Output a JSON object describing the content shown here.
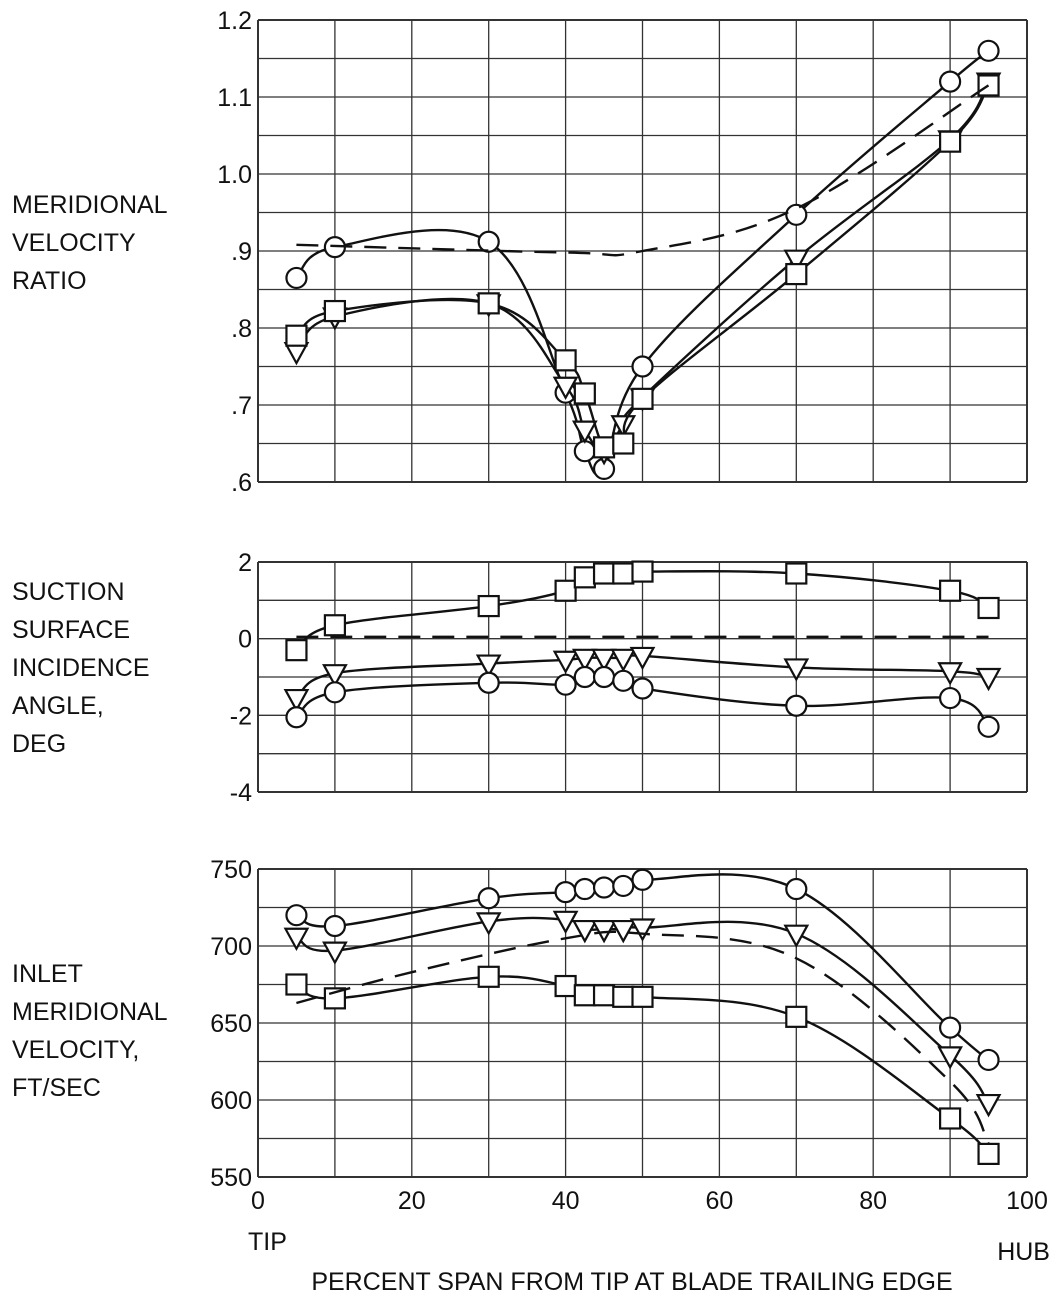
{
  "chart_data": [
    {
      "type": "line",
      "ylabel": [
        "MERIDIONAL",
        "VELOCITY",
        "RATIO"
      ],
      "ylim": [
        0.6,
        1.2
      ],
      "yticks": [
        0.6,
        0.7,
        0.8,
        0.9,
        1.0,
        1.1,
        1.2
      ],
      "ytick_labels": [
        ".6",
        ".7",
        ".8",
        ".9",
        "1.0",
        "1.1",
        "1.2"
      ],
      "xlim": [
        0,
        100
      ],
      "grid": true,
      "series": [
        {
          "marker": "circle",
          "x": [
            5,
            10,
            30,
            40,
            42.5,
            45,
            50,
            70,
            90,
            95
          ],
          "y": [
            0.865,
            0.905,
            0.912,
            0.716,
            0.64,
            0.617,
            0.75,
            0.947,
            1.12,
            1.16
          ]
        },
        {
          "marker": "triangle",
          "x": [
            5,
            10,
            30,
            40,
            42.5,
            45,
            47.5,
            50,
            70,
            90,
            95
          ],
          "y": [
            0.77,
            0.815,
            0.832,
            0.725,
            0.668,
            0.64,
            0.675,
            0.71,
            0.89,
            1.045,
            1.12
          ]
        },
        {
          "marker": "square",
          "x": [
            5,
            10,
            30,
            40,
            42.5,
            45,
            47.5,
            50,
            70,
            90,
            95
          ],
          "y": [
            0.79,
            0.822,
            0.832,
            0.758,
            0.715,
            0.645,
            0.65,
            0.708,
            0.87,
            1.042,
            1.115
          ]
        },
        {
          "dashed": true,
          "x": [
            5,
            40,
            50,
            70,
            95
          ],
          "y": [
            0.908,
            0.898,
            0.9,
            0.955,
            1.115
          ]
        }
      ]
    },
    {
      "type": "line",
      "ylabel": [
        "SUCTION",
        "SURFACE",
        "INCIDENCE",
        "ANGLE,",
        "DEG"
      ],
      "ylim": [
        -4,
        2
      ],
      "yticks": [
        -4,
        -2,
        0,
        2
      ],
      "ytick_labels": [
        "-4",
        "-2",
        "0",
        "2"
      ],
      "xlim": [
        0,
        100
      ],
      "grid": true,
      "series": [
        {
          "marker": "square",
          "x": [
            5,
            10,
            30,
            40,
            42.5,
            45,
            47.5,
            50,
            70,
            90,
            95
          ],
          "y": [
            -0.3,
            0.35,
            0.85,
            1.25,
            1.6,
            1.7,
            1.7,
            1.75,
            1.7,
            1.25,
            0.8
          ]
        },
        {
          "marker": "triangle",
          "x": [
            5,
            10,
            30,
            40,
            42.5,
            45,
            47.5,
            50,
            70,
            90,
            95
          ],
          "y": [
            -1.55,
            -0.9,
            -0.65,
            -0.55,
            -0.5,
            -0.5,
            -0.5,
            -0.45,
            -0.75,
            -0.85,
            -1.0
          ]
        },
        {
          "marker": "circle",
          "x": [
            5,
            10,
            30,
            40,
            42.5,
            45,
            47.5,
            50,
            70,
            90,
            95
          ],
          "y": [
            -2.05,
            -1.4,
            -1.15,
            -1.2,
            -1.0,
            -1.0,
            -1.1,
            -1.3,
            -1.75,
            -1.55,
            -2.3
          ]
        },
        {
          "dashed": true,
          "x": [
            5,
            95
          ],
          "y": [
            0.05,
            0.05
          ]
        }
      ]
    },
    {
      "type": "line",
      "ylabel": [
        "INLET",
        "MERIDIONAL",
        "VELOCITY,",
        "FT/SEC"
      ],
      "ylim": [
        550,
        750
      ],
      "yticks": [
        550,
        600,
        650,
        700,
        750
      ],
      "ytick_labels": [
        "550",
        "600",
        "650",
        "700",
        "750"
      ],
      "xlim": [
        0,
        100
      ],
      "xticks": [
        0,
        20,
        40,
        60,
        80,
        100
      ],
      "xtick_labels": [
        "0",
        "20",
        "40",
        "60",
        "80",
        "100"
      ],
      "grid": true,
      "series": [
        {
          "marker": "circle",
          "x": [
            5,
            10,
            30,
            40,
            42.5,
            45,
            47.5,
            50,
            70,
            90,
            95
          ],
          "y": [
            720,
            713,
            731,
            735,
            737,
            738,
            739,
            743,
            737,
            647,
            626
          ]
        },
        {
          "marker": "triangle",
          "x": [
            5,
            10,
            30,
            40,
            42.5,
            45,
            47.5,
            50,
            70,
            90,
            95
          ],
          "y": [
            706,
            697,
            716,
            717,
            711,
            711,
            711,
            712,
            708,
            629,
            598
          ]
        },
        {
          "marker": "square",
          "x": [
            5,
            10,
            30,
            40,
            42.5,
            45,
            47.5,
            50,
            70,
            90,
            95
          ],
          "y": [
            675,
            666,
            680,
            674,
            668,
            668,
            667,
            667,
            654,
            588,
            565
          ]
        },
        {
          "dashed": true,
          "x": [
            5,
            20,
            40,
            50,
            70,
            90,
            95
          ],
          "y": [
            663,
            683,
            705,
            708,
            692,
            612,
            572
          ]
        }
      ]
    }
  ],
  "xaxis": {
    "tip_label": "TIP",
    "hub_label": "HUB",
    "title": "PERCENT SPAN FROM TIP AT BLADE TRAILING EDGE"
  }
}
